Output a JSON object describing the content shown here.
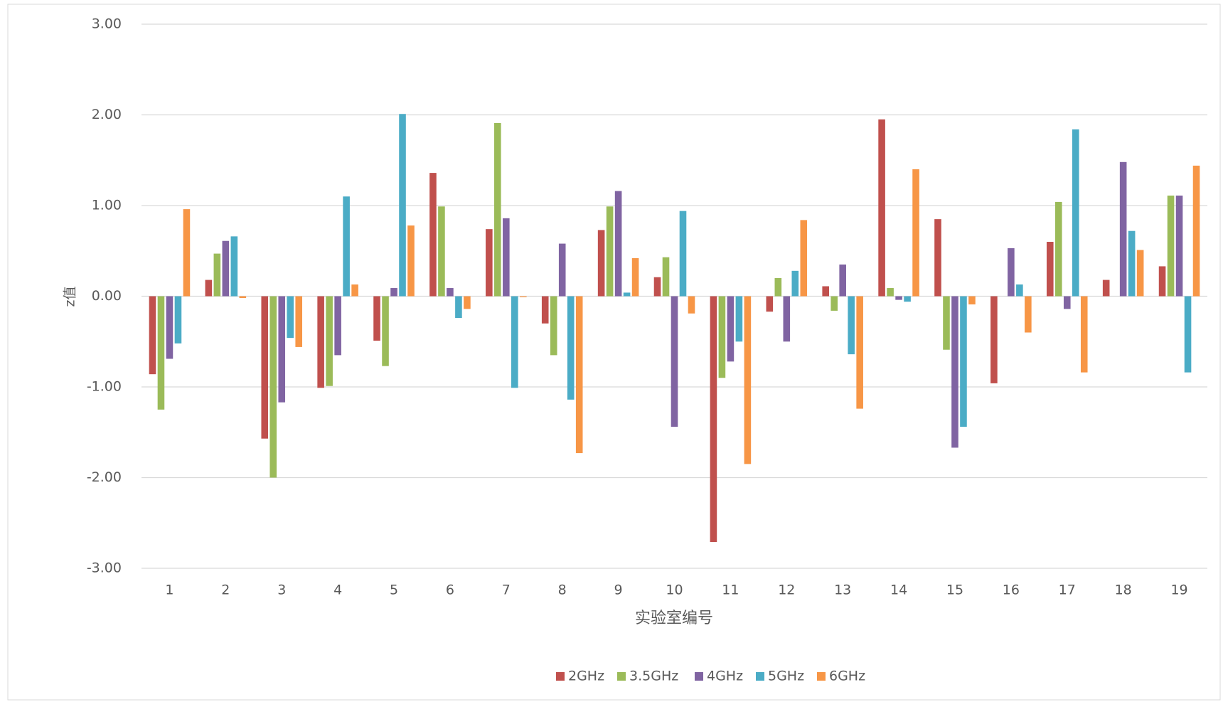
{
  "chart_data": {
    "type": "bar",
    "y_label": "z值",
    "x_label": "实验室编号",
    "categories": [
      "1",
      "2",
      "3",
      "4",
      "5",
      "6",
      "7",
      "8",
      "9",
      "10",
      "11",
      "12",
      "13",
      "14",
      "15",
      "16",
      "17",
      "18",
      "19"
    ],
    "series": [
      {
        "name": "2GHz",
        "color": "#c0504d",
        "values": [
          -0.86,
          0.18,
          -1.57,
          -1.01,
          -0.49,
          1.36,
          0.74,
          -0.3,
          0.73,
          0.21,
          -2.71,
          -0.17,
          0.11,
          1.95,
          0.85,
          -0.96,
          0.6,
          0.18,
          0.33
        ]
      },
      {
        "name": "3.5GHz",
        "color": "#9bbb59",
        "values": [
          -1.25,
          0.47,
          -2.0,
          -0.99,
          -0.77,
          0.99,
          1.91,
          -0.65,
          0.99,
          0.43,
          -0.9,
          0.2,
          -0.16,
          0.09,
          -0.59,
          0.0,
          1.04,
          0.0,
          1.11
        ]
      },
      {
        "name": "4GHz",
        "color": "#8064a2",
        "values": [
          -0.69,
          0.61,
          -1.17,
          -0.65,
          0.09,
          0.09,
          0.86,
          0.58,
          1.16,
          -1.44,
          -0.72,
          -0.5,
          0.35,
          -0.04,
          -1.67,
          0.53,
          -0.14,
          1.48,
          1.11
        ]
      },
      {
        "name": "5GHz",
        "color": "#4bacc6",
        "values": [
          -0.52,
          0.66,
          -0.46,
          1.1,
          2.01,
          -0.24,
          -1.01,
          -1.14,
          0.04,
          0.94,
          -0.5,
          0.28,
          -0.64,
          -0.06,
          -1.44,
          0.13,
          1.84,
          0.72,
          -0.84
        ]
      },
      {
        "name": "6GHz",
        "color": "#f79646",
        "values": [
          0.96,
          -0.02,
          -0.56,
          0.13,
          0.78,
          -0.14,
          -0.01,
          -1.73,
          0.42,
          -0.19,
          -1.85,
          0.84,
          -1.24,
          1.4,
          -0.09,
          -0.4,
          -0.84,
          0.51,
          1.44
        ]
      }
    ],
    "ylim": [
      -3,
      3
    ],
    "yticks": [
      {
        "value": -3,
        "label": "-3.00"
      },
      {
        "value": -2,
        "label": "-2.00"
      },
      {
        "value": -1,
        "label": "-1.00"
      },
      {
        "value": 0,
        "label": "0.00"
      },
      {
        "value": 1,
        "label": "1.00"
      },
      {
        "value": 2,
        "label": "2.00"
      },
      {
        "value": 3,
        "label": "3.00"
      }
    ],
    "grid": true,
    "legend": "bottom"
  }
}
